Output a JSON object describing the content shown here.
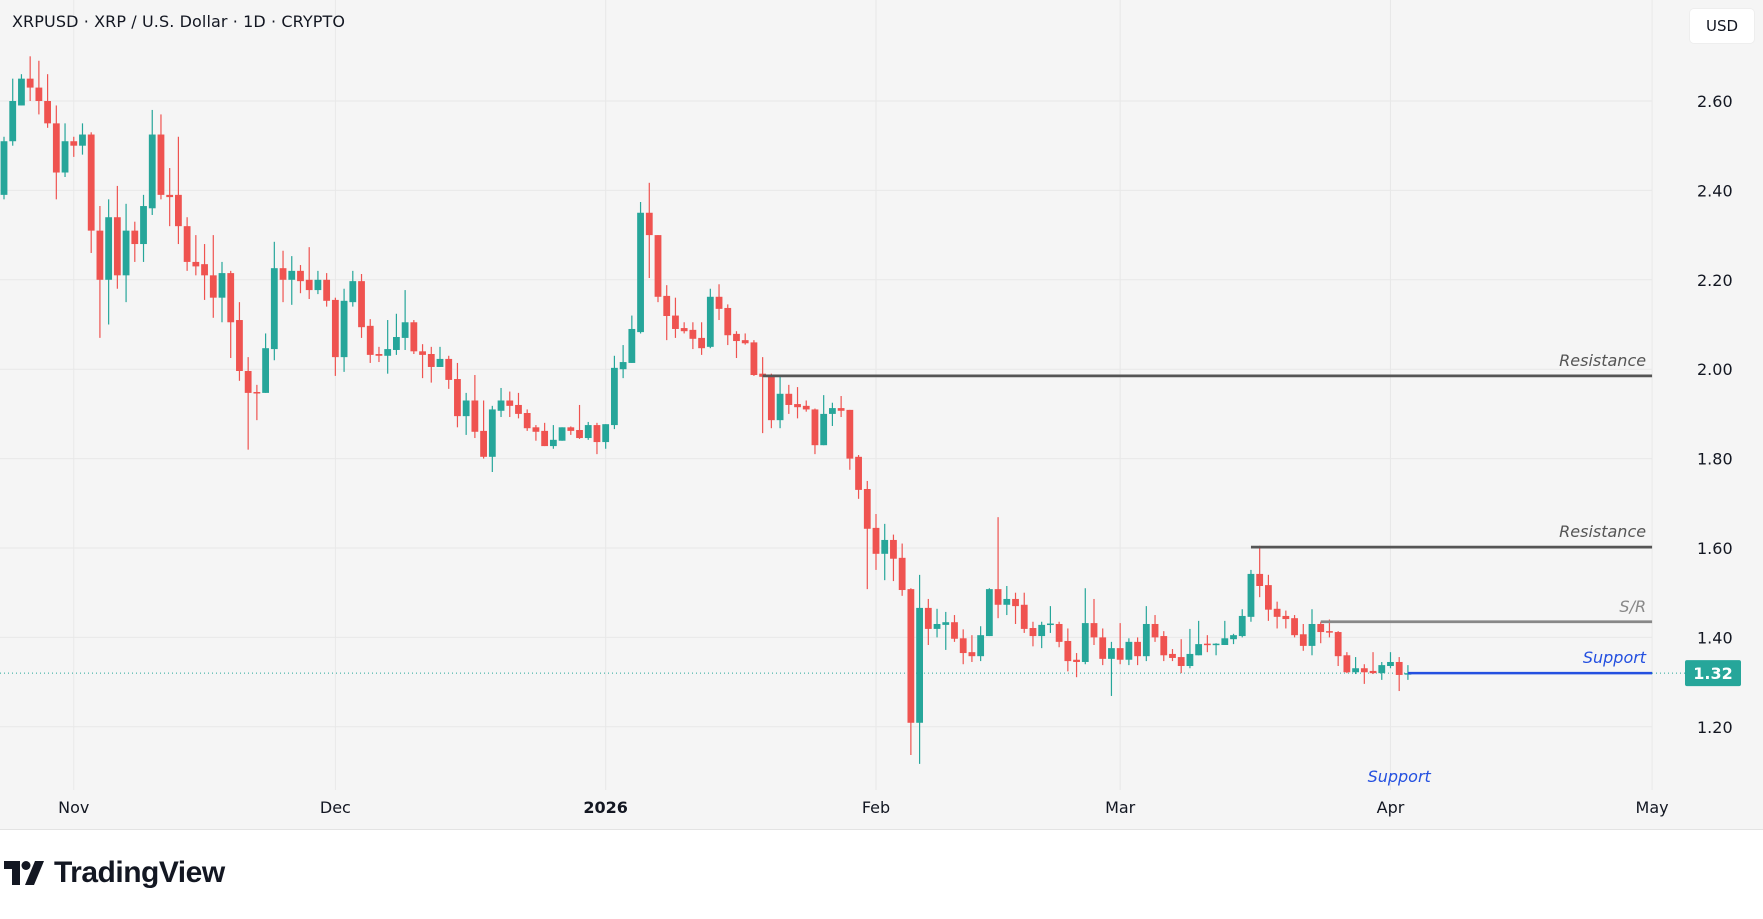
{
  "header": {
    "title": "XRPUSD · XRP / U.S. Dollar · 1D · CRYPTO",
    "currency_button": "USD"
  },
  "brand": {
    "name": "TradingView"
  },
  "colors": {
    "up": "#26a69a",
    "down": "#ef5350",
    "resistance": "#555555",
    "sr": "#888888",
    "support": "#2450e0",
    "background": "#f5f5f5"
  },
  "chart_data": {
    "type": "candlestick",
    "title": "XRPUSD · XRP / U.S. Dollar · 1D · CRYPTO",
    "interval": "1D",
    "ylim": [
      1.05,
      2.72
    ],
    "yticks": [
      "1.20",
      "1.40",
      "1.60",
      "1.80",
      "2.00",
      "2.20",
      "2.40",
      "2.60"
    ],
    "xticks": [
      {
        "label": "Nov",
        "date": "2025-11-01",
        "bold": false
      },
      {
        "label": "Dec",
        "date": "2025-12-01",
        "bold": false
      },
      {
        "label": "2026",
        "date": "2026-01-01",
        "bold": true
      },
      {
        "label": "Feb",
        "date": "2026-02-01",
        "bold": false
      },
      {
        "label": "Mar",
        "date": "2026-03-01",
        "bold": false
      },
      {
        "label": "Apr",
        "date": "2026-04-01",
        "bold": false
      },
      {
        "label": "May",
        "date": "2026-05-01",
        "bold": false
      }
    ],
    "grid": true,
    "last_price": "1.32",
    "columns": [
      "date",
      "open",
      "high",
      "low",
      "close"
    ],
    "candles": [
      [
        "2025-10-24",
        2.39,
        2.52,
        2.38,
        2.51
      ],
      [
        "2025-10-25",
        2.51,
        2.65,
        2.5,
        2.6
      ],
      [
        "2025-10-26",
        2.59,
        2.66,
        2.59,
        2.65
      ],
      [
        "2025-10-27",
        2.65,
        2.7,
        2.6,
        2.63
      ],
      [
        "2025-10-28",
        2.63,
        2.69,
        2.57,
        2.6
      ],
      [
        "2025-10-29",
        2.6,
        2.66,
        2.54,
        2.55
      ],
      [
        "2025-10-30",
        2.55,
        2.59,
        2.38,
        2.44
      ],
      [
        "2025-10-31",
        2.44,
        2.55,
        2.43,
        2.51
      ],
      [
        "2025-11-01",
        2.51,
        2.52,
        2.475,
        2.5
      ],
      [
        "2025-11-02",
        2.5,
        2.55,
        2.48,
        2.525
      ],
      [
        "2025-11-03",
        2.525,
        2.53,
        2.26,
        2.31
      ],
      [
        "2025-11-04",
        2.31,
        2.365,
        2.07,
        2.2
      ],
      [
        "2025-11-05",
        2.2,
        2.38,
        2.1,
        2.34
      ],
      [
        "2025-11-06",
        2.34,
        2.41,
        2.18,
        2.21
      ],
      [
        "2025-11-07",
        2.21,
        2.37,
        2.15,
        2.31
      ],
      [
        "2025-11-08",
        2.31,
        2.33,
        2.24,
        2.28
      ],
      [
        "2025-11-09",
        2.28,
        2.39,
        2.24,
        2.365
      ],
      [
        "2025-11-10",
        2.36,
        2.58,
        2.345,
        2.525
      ],
      [
        "2025-11-11",
        2.525,
        2.57,
        2.38,
        2.39
      ],
      [
        "2025-11-12",
        2.39,
        2.45,
        2.32,
        2.385
      ],
      [
        "2025-11-13",
        2.39,
        2.52,
        2.28,
        2.32
      ],
      [
        "2025-11-14",
        2.32,
        2.34,
        2.22,
        2.24
      ],
      [
        "2025-11-15",
        2.24,
        2.3,
        2.21,
        2.23
      ],
      [
        "2025-11-16",
        2.235,
        2.28,
        2.155,
        2.21
      ],
      [
        "2025-11-17",
        2.21,
        2.3,
        2.115,
        2.16
      ],
      [
        "2025-11-18",
        2.16,
        2.24,
        2.105,
        2.215
      ],
      [
        "2025-11-19",
        2.215,
        2.22,
        2.025,
        2.105
      ],
      [
        "2025-11-20",
        2.11,
        2.15,
        1.974,
        1.996
      ],
      [
        "2025-11-21",
        1.996,
        2.027,
        1.82,
        1.947
      ],
      [
        "2025-11-22",
        1.949,
        1.965,
        1.886,
        1.947
      ],
      [
        "2025-11-23",
        1.947,
        2.08,
        1.947,
        2.047
      ],
      [
        "2025-11-24",
        2.045,
        2.285,
        2.02,
        2.226
      ],
      [
        "2025-11-25",
        2.226,
        2.265,
        2.15,
        2.2
      ],
      [
        "2025-11-26",
        2.2,
        2.253,
        2.144,
        2.22
      ],
      [
        "2025-11-27",
        2.22,
        2.233,
        2.17,
        2.197
      ],
      [
        "2025-11-28",
        2.2,
        2.273,
        2.157,
        2.177
      ],
      [
        "2025-11-29",
        2.177,
        2.22,
        2.168,
        2.2
      ],
      [
        "2025-11-30",
        2.2,
        2.215,
        2.14,
        2.153
      ],
      [
        "2025-12-01",
        2.155,
        2.16,
        1.985,
        2.027
      ],
      [
        "2025-12-02",
        2.027,
        2.18,
        1.994,
        2.153
      ],
      [
        "2025-12-03",
        2.15,
        2.22,
        2.14,
        2.197
      ],
      [
        "2025-12-04",
        2.197,
        2.213,
        2.07,
        2.094
      ],
      [
        "2025-12-05",
        2.097,
        2.112,
        2.014,
        2.032
      ],
      [
        "2025-12-06",
        2.034,
        2.05,
        2.016,
        2.03
      ],
      [
        "2025-12-07",
        2.03,
        2.11,
        1.99,
        2.045
      ],
      [
        "2025-12-08",
        2.043,
        2.124,
        2.032,
        2.072
      ],
      [
        "2025-12-09",
        2.07,
        2.177,
        2.043,
        2.105
      ],
      [
        "2025-12-10",
        2.105,
        2.11,
        2.034,
        2.04
      ],
      [
        "2025-12-11",
        2.04,
        2.056,
        1.98,
        2.032
      ],
      [
        "2025-12-12",
        2.034,
        2.05,
        1.97,
        2.005
      ],
      [
        "2025-12-13",
        2.005,
        2.05,
        2.005,
        2.023
      ],
      [
        "2025-12-14",
        2.023,
        2.03,
        1.956,
        1.976
      ],
      [
        "2025-12-15",
        1.978,
        2.014,
        1.87,
        1.895
      ],
      [
        "2025-12-16",
        1.895,
        1.947,
        1.853,
        1.93
      ],
      [
        "2025-12-17",
        1.93,
        1.987,
        1.846,
        1.86
      ],
      [
        "2025-12-18",
        1.862,
        1.93,
        1.8,
        1.804
      ],
      [
        "2025-12-19",
        1.804,
        1.918,
        1.77,
        1.91
      ],
      [
        "2025-12-20",
        1.907,
        1.958,
        1.893,
        1.93
      ],
      [
        "2025-12-21",
        1.93,
        1.95,
        1.893,
        1.918
      ],
      [
        "2025-12-22",
        1.92,
        1.947,
        1.89,
        1.9
      ],
      [
        "2025-12-23",
        1.902,
        1.91,
        1.862,
        1.868
      ],
      [
        "2025-12-24",
        1.87,
        1.875,
        1.84,
        1.86
      ],
      [
        "2025-12-25",
        1.862,
        1.88,
        1.828,
        1.828
      ],
      [
        "2025-12-26",
        1.828,
        1.875,
        1.822,
        1.842
      ],
      [
        "2025-12-27",
        1.84,
        1.87,
        1.84,
        1.87
      ],
      [
        "2025-12-28",
        1.87,
        1.872,
        1.853,
        1.862
      ],
      [
        "2025-12-29",
        1.864,
        1.92,
        1.844,
        1.846
      ],
      [
        "2025-12-30",
        1.846,
        1.882,
        1.842,
        1.875
      ],
      [
        "2025-12-31",
        1.875,
        1.88,
        1.81,
        1.837
      ],
      [
        "2026-01-01",
        1.837,
        1.877,
        1.822,
        1.877
      ],
      [
        "2026-01-02",
        1.875,
        2.03,
        1.866,
        2.003
      ],
      [
        "2026-01-03",
        2.0,
        2.054,
        1.98,
        2.016
      ],
      [
        "2026-01-04",
        2.014,
        2.12,
        2.014,
        2.09
      ],
      [
        "2026-01-05",
        2.083,
        2.374,
        2.08,
        2.35
      ],
      [
        "2026-01-06",
        2.35,
        2.417,
        2.204,
        2.3
      ],
      [
        "2026-01-07",
        2.3,
        2.3,
        2.15,
        2.162
      ],
      [
        "2026-01-08",
        2.164,
        2.188,
        2.065,
        2.119
      ],
      [
        "2026-01-09",
        2.12,
        2.16,
        2.07,
        2.09
      ],
      [
        "2026-01-10",
        2.092,
        2.105,
        2.08,
        2.085
      ],
      [
        "2026-01-11",
        2.088,
        2.105,
        2.045,
        2.068
      ],
      [
        "2026-01-12",
        2.07,
        2.105,
        2.032,
        2.047
      ],
      [
        "2026-01-13",
        2.05,
        2.18,
        2.047,
        2.162
      ],
      [
        "2026-01-14",
        2.162,
        2.19,
        2.11,
        2.135
      ],
      [
        "2026-01-15",
        2.137,
        2.145,
        2.054,
        2.076
      ],
      [
        "2026-01-16",
        2.079,
        2.085,
        2.025,
        2.063
      ],
      [
        "2026-01-17",
        2.065,
        2.08,
        2.055,
        2.058
      ],
      [
        "2026-01-18",
        2.06,
        2.065,
        1.985,
        1.987
      ],
      [
        "2026-01-19",
        1.99,
        2.027,
        1.857,
        1.983
      ],
      [
        "2026-01-20",
        1.985,
        1.99,
        1.868,
        1.886
      ],
      [
        "2026-01-21",
        1.886,
        1.987,
        1.868,
        1.945
      ],
      [
        "2026-01-22",
        1.945,
        1.965,
        1.9,
        1.92
      ],
      [
        "2026-01-23",
        1.922,
        1.96,
        1.89,
        1.915
      ],
      [
        "2026-01-24",
        1.918,
        1.93,
        1.905,
        1.91
      ],
      [
        "2026-01-25",
        1.91,
        1.912,
        1.81,
        1.83
      ],
      [
        "2026-01-26",
        1.83,
        1.942,
        1.83,
        1.9
      ],
      [
        "2026-01-27",
        1.9,
        1.925,
        1.873,
        1.913
      ],
      [
        "2026-01-28",
        1.913,
        1.94,
        1.893,
        1.907
      ],
      [
        "2026-01-29",
        1.909,
        1.909,
        1.775,
        1.8
      ],
      [
        "2026-01-30",
        1.804,
        1.808,
        1.71,
        1.73
      ],
      [
        "2026-01-31",
        1.732,
        1.75,
        1.508,
        1.643
      ],
      [
        "2026-02-01",
        1.645,
        1.676,
        1.551,
        1.587
      ],
      [
        "2026-02-02",
        1.587,
        1.654,
        1.528,
        1.618
      ],
      [
        "2026-02-03",
        1.618,
        1.63,
        1.526,
        1.576
      ],
      [
        "2026-02-04",
        1.578,
        1.61,
        1.493,
        1.506
      ],
      [
        "2026-02-05",
        1.508,
        1.51,
        1.137,
        1.209
      ],
      [
        "2026-02-06",
        1.209,
        1.54,
        1.117,
        1.466
      ],
      [
        "2026-02-07",
        1.466,
        1.486,
        1.383,
        1.419
      ],
      [
        "2026-02-08",
        1.419,
        1.464,
        1.4,
        1.43
      ],
      [
        "2026-02-09",
        1.428,
        1.457,
        1.372,
        1.434
      ],
      [
        "2026-02-10",
        1.434,
        1.45,
        1.39,
        1.397
      ],
      [
        "2026-02-11",
        1.398,
        1.418,
        1.34,
        1.365
      ],
      [
        "2026-02-12",
        1.367,
        1.405,
        1.345,
        1.358
      ],
      [
        "2026-02-13",
        1.358,
        1.425,
        1.347,
        1.405
      ],
      [
        "2026-02-14",
        1.403,
        1.51,
        1.403,
        1.508
      ],
      [
        "2026-02-15",
        1.508,
        1.669,
        1.443,
        1.473
      ],
      [
        "2026-02-16",
        1.473,
        1.515,
        1.45,
        1.486
      ],
      [
        "2026-02-17",
        1.486,
        1.5,
        1.43,
        1.47
      ],
      [
        "2026-02-18",
        1.473,
        1.5,
        1.41,
        1.419
      ],
      [
        "2026-02-19",
        1.421,
        1.435,
        1.38,
        1.403
      ],
      [
        "2026-02-20",
        1.403,
        1.435,
        1.376,
        1.428
      ],
      [
        "2026-02-21",
        1.429,
        1.47,
        1.41,
        1.431
      ],
      [
        "2026-02-22",
        1.43,
        1.435,
        1.378,
        1.39
      ],
      [
        "2026-02-23",
        1.392,
        1.42,
        1.324,
        1.347
      ],
      [
        "2026-02-24",
        1.35,
        1.365,
        1.311,
        1.345
      ],
      [
        "2026-02-25",
        1.345,
        1.51,
        1.34,
        1.432
      ],
      [
        "2026-02-26",
        1.432,
        1.486,
        1.383,
        1.4
      ],
      [
        "2026-02-27",
        1.4,
        1.42,
        1.338,
        1.352
      ],
      [
        "2026-02-28",
        1.352,
        1.39,
        1.269,
        1.376
      ],
      [
        "2026-03-01",
        1.376,
        1.432,
        1.34,
        1.35
      ],
      [
        "2026-03-02",
        1.35,
        1.398,
        1.338,
        1.39
      ],
      [
        "2026-03-03",
        1.39,
        1.4,
        1.338,
        1.358
      ],
      [
        "2026-03-04",
        1.358,
        1.47,
        1.347,
        1.43
      ],
      [
        "2026-03-05",
        1.43,
        1.45,
        1.39,
        1.4
      ],
      [
        "2026-03-06",
        1.403,
        1.414,
        1.347,
        1.36
      ],
      [
        "2026-03-07",
        1.363,
        1.374,
        1.347,
        1.354
      ],
      [
        "2026-03-08",
        1.356,
        1.396,
        1.32,
        1.336
      ],
      [
        "2026-03-09",
        1.336,
        1.419,
        1.331,
        1.363
      ],
      [
        "2026-03-10",
        1.36,
        1.437,
        1.36,
        1.385
      ],
      [
        "2026-03-11",
        1.386,
        1.405,
        1.367,
        1.384
      ],
      [
        "2026-03-12",
        1.384,
        1.387,
        1.36,
        1.386
      ],
      [
        "2026-03-13",
        1.383,
        1.437,
        1.383,
        1.398
      ],
      [
        "2026-03-14",
        1.396,
        1.408,
        1.385,
        1.405
      ],
      [
        "2026-03-15",
        1.403,
        1.463,
        1.4,
        1.448
      ],
      [
        "2026-03-16",
        1.446,
        1.551,
        1.435,
        1.542
      ],
      [
        "2026-03-17",
        1.542,
        1.605,
        1.49,
        1.515
      ],
      [
        "2026-03-18",
        1.517,
        1.54,
        1.437,
        1.462
      ],
      [
        "2026-03-19",
        1.464,
        1.48,
        1.42,
        1.446
      ],
      [
        "2026-03-20",
        1.448,
        1.46,
        1.42,
        1.441
      ],
      [
        "2026-03-21",
        1.443,
        1.45,
        1.4,
        1.405
      ],
      [
        "2026-03-22",
        1.407,
        1.43,
        1.37,
        1.381
      ],
      [
        "2026-03-23",
        1.381,
        1.463,
        1.36,
        1.43
      ],
      [
        "2026-03-24",
        1.43,
        1.435,
        1.387,
        1.412
      ],
      [
        "2026-03-25",
        1.414,
        1.44,
        1.4,
        1.412
      ],
      [
        "2026-03-26",
        1.412,
        1.414,
        1.336,
        1.358
      ],
      [
        "2026-03-27",
        1.36,
        1.367,
        1.32,
        1.322
      ],
      [
        "2026-03-28",
        1.322,
        1.356,
        1.318,
        1.331
      ],
      [
        "2026-03-29",
        1.331,
        1.34,
        1.296,
        1.322
      ],
      [
        "2026-03-30",
        1.325,
        1.367,
        1.318,
        1.32
      ],
      [
        "2026-03-31",
        1.32,
        1.345,
        1.305,
        1.338
      ],
      [
        "2026-04-01",
        1.336,
        1.367,
        1.331,
        1.345
      ],
      [
        "2026-04-02",
        1.345,
        1.356,
        1.28,
        1.316
      ],
      [
        "2026-04-03",
        1.319,
        1.338,
        1.305,
        1.32
      ]
    ],
    "levels": [
      {
        "label": "Resistance",
        "price": 1.985,
        "from": "2026-01-19",
        "to": "2026-05-01",
        "kind": "resistance"
      },
      {
        "label": "Resistance",
        "price": 1.602,
        "from": "2026-03-16",
        "to": "2026-05-01",
        "kind": "resistance"
      },
      {
        "label": "S/R",
        "price": 1.435,
        "from": "2026-03-24",
        "to": "2026-05-01",
        "kind": "sr"
      },
      {
        "label": "Support",
        "price": 1.32,
        "from": "2026-04-03",
        "to": "2026-05-01",
        "kind": "support"
      }
    ],
    "annotations": [
      {
        "text": "Support",
        "date": "2026-04-02",
        "price": 1.09
      }
    ]
  }
}
